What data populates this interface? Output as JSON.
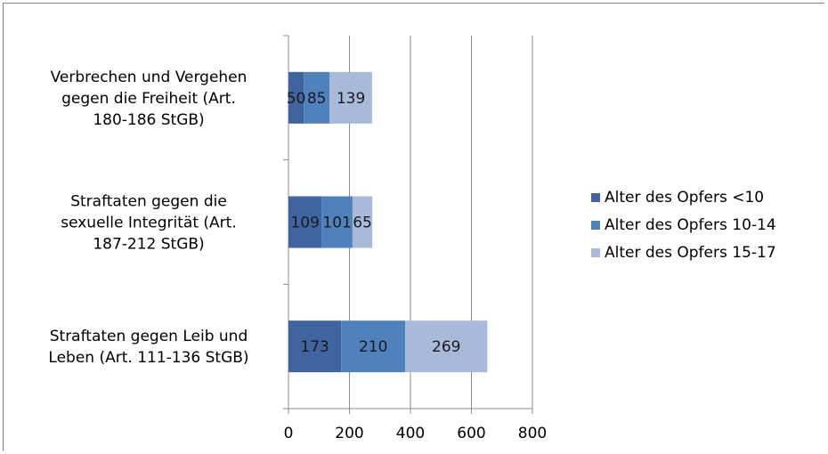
{
  "chart_data": {
    "type": "bar",
    "orientation": "horizontal",
    "stacked": true,
    "categories": [
      [
        "Straftaten gegen Leib und",
        "Leben (Art. 111-136 StGB)"
      ],
      [
        "Straftaten gegen die",
        "sexuelle Integrität (Art.",
        "187-212 StGB)"
      ],
      [
        "Verbrechen und Vergehen",
        "gegen die Freiheit (Art.",
        "180-186 StGB)"
      ]
    ],
    "series": [
      {
        "name": "Alter des Opfers <10",
        "color": "#4064a0",
        "values": [
          173,
          109,
          50
        ]
      },
      {
        "name": "Alter des Opfers 10-14",
        "color": "#4f81bd",
        "values": [
          210,
          101,
          85
        ]
      },
      {
        "name": "Alter des Opfers 15-17",
        "color": "#a8b9d9",
        "values": [
          269,
          65,
          139
        ]
      }
    ],
    "xlim": [
      0,
      800
    ],
    "xticks": [
      0,
      200,
      400,
      600,
      800
    ],
    "grid": "vertical",
    "legend_position": "right",
    "data_labels": true
  }
}
